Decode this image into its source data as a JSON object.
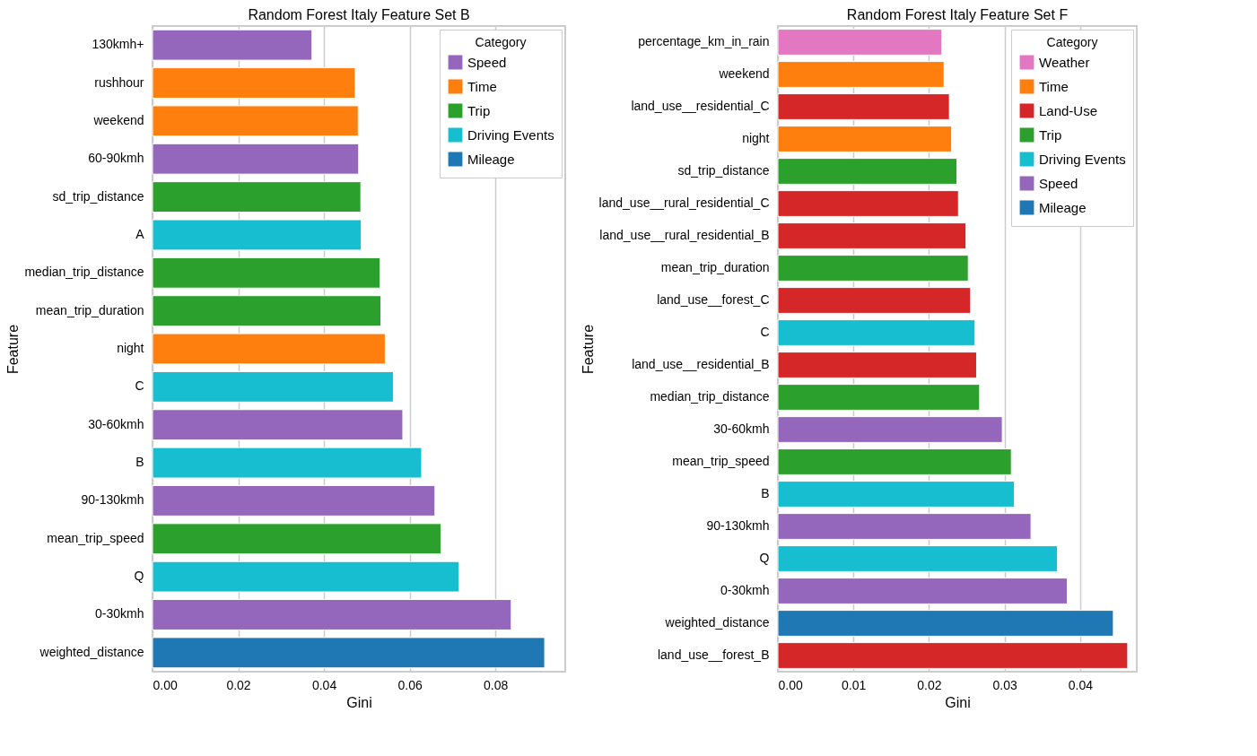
{
  "chart_data": [
    {
      "type": "bar",
      "orientation": "horizontal",
      "title": "Random Forest Italy Feature Set B",
      "xlabel": "Gini",
      "ylabel": "Feature",
      "legend_title": "Category",
      "legend": "top right",
      "grid": "x",
      "categories": [
        "130kmh+",
        "rushhour",
        "weekend",
        "60-90kmh",
        "sd_trip_distance",
        "A",
        "median_trip_distance",
        "mean_trip_duration",
        "night",
        "C",
        "30-60kmh",
        "B",
        "90-130kmh",
        "mean_trip_speed",
        "Q",
        "0-30kmh",
        "weighted_distance"
      ],
      "series": [
        {
          "name": "Speed",
          "color": "#9467bd",
          "values": [
            0.0372,
            null,
            null,
            0.0481,
            null,
            null,
            null,
            null,
            null,
            null,
            0.0584,
            null,
            0.0659,
            null,
            null,
            0.0837,
            null
          ]
        },
        {
          "name": "Time",
          "color": "#ff7f0e",
          "values": [
            null,
            0.0473,
            0.048,
            null,
            null,
            null,
            null,
            null,
            0.0543,
            null,
            null,
            null,
            null,
            null,
            null,
            null,
            null
          ]
        },
        {
          "name": "Trip",
          "color": "#2ca02c",
          "values": [
            null,
            null,
            null,
            null,
            0.0486,
            null,
            0.0531,
            0.0533,
            null,
            null,
            null,
            null,
            null,
            0.0673,
            null,
            null,
            null
          ]
        },
        {
          "name": "Driving Events",
          "color": "#17becf",
          "values": [
            null,
            null,
            null,
            null,
            null,
            0.0487,
            null,
            null,
            null,
            0.0562,
            null,
            0.0628,
            null,
            null,
            0.0715,
            null,
            null
          ]
        },
        {
          "name": "Mileage",
          "color": "#1f77b4",
          "values": [
            null,
            null,
            null,
            null,
            null,
            null,
            null,
            null,
            null,
            null,
            null,
            null,
            null,
            null,
            null,
            null,
            0.0915
          ]
        }
      ],
      "xlim": [
        0,
        0.0963
      ],
      "xticks": [
        {
          "value": 0,
          "label": "0.00"
        },
        {
          "value": 0.02,
          "label": "0.02"
        },
        {
          "value": 0.04,
          "label": "0.04"
        },
        {
          "value": 0.06,
          "label": "0.06"
        },
        {
          "value": 0.08,
          "label": "0.08"
        }
      ]
    },
    {
      "type": "bar",
      "orientation": "horizontal",
      "title": "Random Forest Italy Feature Set F",
      "xlabel": "Gini",
      "ylabel": "Feature",
      "legend_title": "Category",
      "legend": "top right",
      "grid": "x",
      "categories": [
        "percentage_km_in_rain",
        "weekend",
        "land_use__residential_C",
        "night",
        "sd_trip_distance",
        "land_use__rural_residential_C",
        "land_use__rural_residential_B",
        "mean_trip_duration",
        "land_use__forest_C",
        "C",
        "land_use__residential_B",
        "median_trip_distance",
        "30-60kmh",
        "mean_trip_speed",
        "B",
        "90-130kmh",
        "Q",
        "0-30kmh",
        "weighted_distance",
        "land_use__forest_B"
      ],
      "series": [
        {
          "name": "Weather",
          "color": "#e377c2",
          "values": [
            0.0217,
            null,
            null,
            null,
            null,
            null,
            null,
            null,
            null,
            null,
            null,
            null,
            null,
            null,
            null,
            null,
            null,
            null,
            null,
            null
          ]
        },
        {
          "name": "Time",
          "color": "#ff7f0e",
          "values": [
            null,
            0.022,
            null,
            0.023,
            null,
            null,
            null,
            null,
            null,
            null,
            null,
            null,
            null,
            null,
            null,
            null,
            null,
            null,
            null,
            null
          ]
        },
        {
          "name": "Land-Use",
          "color": "#d62728",
          "values": [
            null,
            null,
            0.0227,
            null,
            null,
            0.0239,
            0.0249,
            null,
            0.0255,
            null,
            0.0263,
            null,
            null,
            null,
            null,
            null,
            null,
            null,
            null,
            0.0463
          ]
        },
        {
          "name": "Trip",
          "color": "#2ca02c",
          "values": [
            null,
            null,
            null,
            null,
            0.0237,
            null,
            null,
            0.0252,
            null,
            null,
            null,
            0.0267,
            null,
            0.0309,
            null,
            null,
            null,
            null,
            null,
            null
          ]
        },
        {
          "name": "Driving Events",
          "color": "#17becf",
          "values": [
            null,
            null,
            null,
            null,
            null,
            null,
            null,
            null,
            null,
            0.0261,
            null,
            null,
            null,
            null,
            0.0313,
            null,
            0.037,
            null,
            null,
            null
          ]
        },
        {
          "name": "Speed",
          "color": "#9467bd",
          "values": [
            null,
            null,
            null,
            null,
            null,
            null,
            null,
            null,
            null,
            null,
            null,
            null,
            0.0297,
            null,
            null,
            0.0335,
            null,
            0.0383,
            null,
            null
          ]
        },
        {
          "name": "Mileage",
          "color": "#1f77b4",
          "values": [
            null,
            null,
            null,
            null,
            null,
            null,
            null,
            null,
            null,
            null,
            null,
            null,
            null,
            null,
            null,
            null,
            null,
            null,
            0.0444,
            null
          ]
        }
      ],
      "xlim": [
        0,
        0.0475
      ],
      "xticks": [
        {
          "value": 0,
          "label": "0.00"
        },
        {
          "value": 0.01,
          "label": "0.01"
        },
        {
          "value": 0.02,
          "label": "0.02"
        },
        {
          "value": 0.03,
          "label": "0.03"
        },
        {
          "value": 0.04,
          "label": "0.04"
        }
      ]
    }
  ]
}
